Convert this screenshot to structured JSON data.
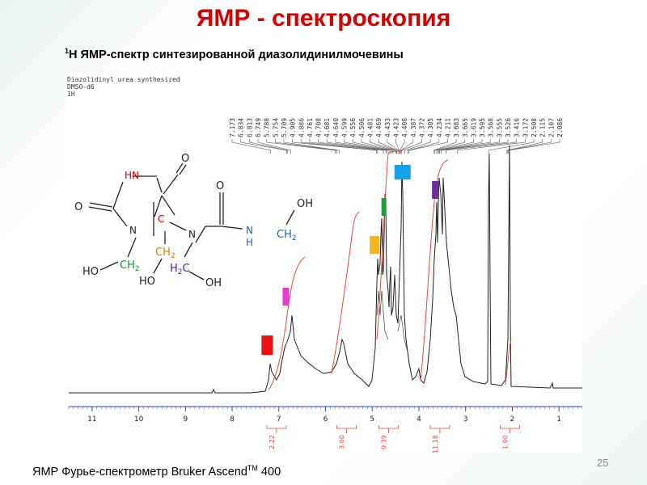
{
  "slide": {
    "title": "ЯМР - спектроскопия",
    "subtitle_sup": "1",
    "subtitle": "Н ЯМР-спектр синтезированной диазолидинилмочевины",
    "footer_prefix": "ЯМР Фурье-спектрометр Bruker Ascend",
    "footer_sup": "TM",
    "footer_suffix": " 400",
    "page_number": "25"
  },
  "spectrum_header": {
    "line1": "Diazolidinyl urea synthesized",
    "line2": "DMSO-d6",
    "line3": "1H"
  },
  "peak_labels": [
    "7.173",
    "6.834",
    "6.813",
    "6.749",
    "5.788",
    "5.754",
    "5.709",
    "4.905",
    "4.886",
    "4.761",
    "4.708",
    "4.681",
    "4.640",
    "4.599",
    "4.556",
    "4.506",
    "4.481",
    "4.469",
    "4.433",
    "4.423",
    "4.406",
    "4.387",
    "4.372",
    "4.305",
    "4.234",
    "4.211",
    "3.683",
    "3.665",
    "3.619",
    "3.595",
    "3.568",
    "3.555",
    "3.526",
    "3.416",
    "3.172",
    "2.508",
    "2.115",
    "2.107",
    "2.086"
  ],
  "x_axis": {
    "range": [
      11.5,
      0.5
    ],
    "ticks": [
      "11",
      "10",
      "9",
      "8",
      "7",
      "6",
      "5",
      "4",
      "3",
      "2",
      "1"
    ]
  },
  "integrals": [
    {
      "value": "2.22",
      "ppm": 7.05
    },
    {
      "value": "3.00",
      "ppm": 5.55
    },
    {
      "value": "9.39",
      "ppm": 4.65
    },
    {
      "value": "11.18",
      "ppm": 3.55
    },
    {
      "value": "1.00",
      "ppm": 2.05
    }
  ],
  "markers": [
    {
      "color": "#ee1111",
      "ppm": 7.25
    },
    {
      "color": "#e83cce",
      "ppm": 6.85
    },
    {
      "color": "#f4b61c",
      "ppm": 4.95
    },
    {
      "color": "#1a9e3a",
      "ppm": 4.75
    },
    {
      "color": "#14a3e8",
      "ppm": 4.35
    },
    {
      "color": "#6a2ea0",
      "ppm": 3.65
    }
  ],
  "structure": {
    "hn": "HN",
    "o_top": "O",
    "o_left": "O",
    "o_urea": "O",
    "n_ring": "N",
    "c_center": "C",
    "n_chain": "N",
    "nh_n": "N",
    "nh_h": "H",
    "ch2_right": "CH",
    "ch2_right_sub": "2",
    "oh_top": "OH",
    "ho_left": "HO",
    "ch2_green": "CH",
    "ch2_green_sub": "2",
    "ch2_orange": "CH",
    "ch2_orange_sub": "2",
    "ho_orange": "HO",
    "h2c_purple": "H",
    "h2c_purple_sub": "2",
    "h2c_purple_c": "C",
    "oh_bottom": "OH"
  },
  "colors": {
    "title": "#d40000",
    "axis": "#3344cc",
    "integral": "#e04a3a",
    "spectrum": "#222222",
    "ring_red": "#cc0000",
    "urea_blue": "#1565c0",
    "green": "#0a9b2a",
    "orange": "#e87a00",
    "purple": "#4a1d96"
  }
}
